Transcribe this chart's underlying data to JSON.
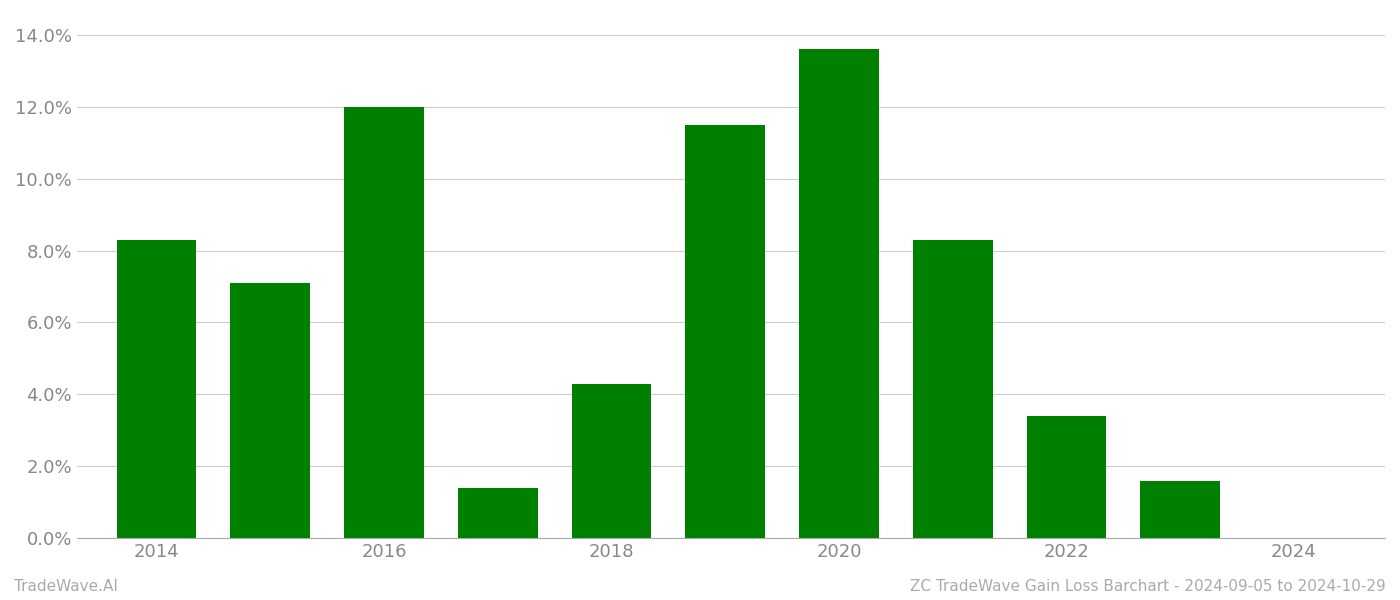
{
  "years": [
    2014,
    2015,
    2016,
    2017,
    2018,
    2019,
    2020,
    2021,
    2022,
    2023,
    2024
  ],
  "values": [
    0.083,
    0.071,
    0.12,
    0.014,
    0.043,
    0.115,
    0.136,
    0.083,
    0.034,
    0.016,
    0.0
  ],
  "bar_color": "#008000",
  "background_color": "#ffffff",
  "grid_color": "#cccccc",
  "axis_color": "#aaaaaa",
  "tick_label_color": "#888888",
  "ylim": [
    0,
    0.1455
  ],
  "yticks": [
    0.0,
    0.02,
    0.04,
    0.06,
    0.08,
    0.1,
    0.12,
    0.14
  ],
  "xticks": [
    2014,
    2016,
    2018,
    2020,
    2022,
    2024
  ],
  "xlim": [
    2013.3,
    2024.8
  ],
  "footer_left": "TradeWave.AI",
  "footer_right": "ZC TradeWave Gain Loss Barchart - 2024-09-05 to 2024-10-29",
  "footer_color": "#aaaaaa",
  "bar_width": 0.7,
  "font_size_ticks": 13,
  "font_size_footer": 11
}
